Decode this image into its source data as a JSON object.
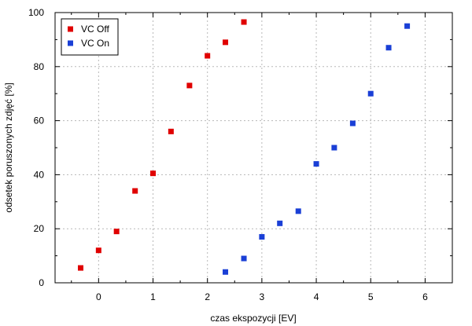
{
  "chart_data": {
    "type": "scatter",
    "xlabel": "czas ekspozycji [EV]",
    "ylabel": "odsetek poruszonych zdjęć [%]",
    "xlim": [
      -0.8,
      6.5
    ],
    "ylim": [
      0,
      100
    ],
    "xticks": [
      0,
      1,
      2,
      3,
      4,
      5,
      6
    ],
    "yticks": [
      0,
      20,
      40,
      60,
      80,
      100
    ],
    "grid": true,
    "legend_position": "top-left",
    "series": [
      {
        "name": "VC Off",
        "color": "#e00000",
        "marker": "square",
        "x": [
          -0.33,
          0,
          0.33,
          0.67,
          1,
          1.33,
          1.67,
          2,
          2.33,
          2.67
        ],
        "y": [
          5.5,
          12,
          19,
          34,
          40.5,
          56,
          73,
          84,
          89,
          96.5
        ]
      },
      {
        "name": "VC On",
        "color": "#1a3fd6",
        "marker": "square",
        "x": [
          2.33,
          2.67,
          3,
          3.33,
          3.67,
          4,
          4.33,
          4.67,
          5,
          5.33,
          5.67
        ],
        "y": [
          4,
          9,
          17,
          22,
          26.5,
          44,
          50,
          59,
          70,
          87,
          95
        ]
      }
    ]
  }
}
